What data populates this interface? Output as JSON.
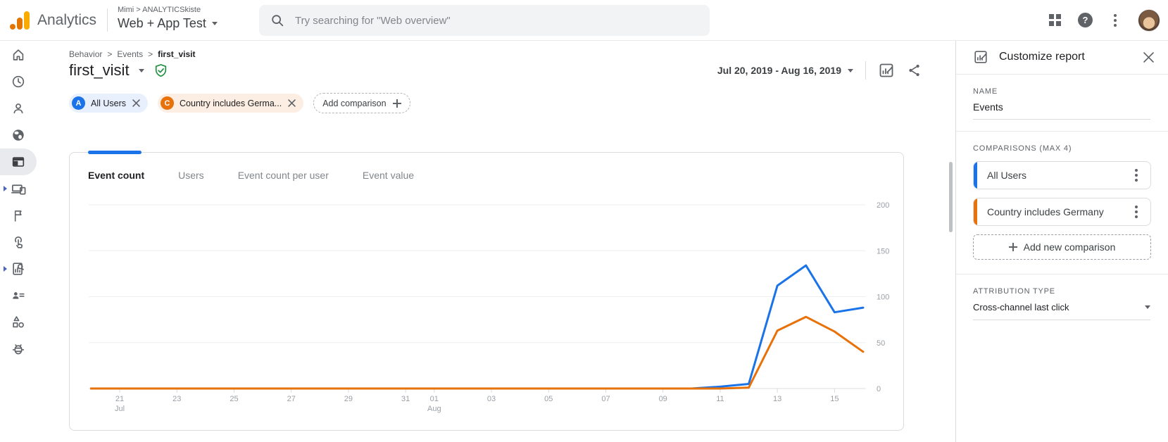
{
  "colors": {
    "accent_blue": "#1a73e8",
    "accent_orange": "#e8710a",
    "green_check": "#1e8e3e"
  },
  "icons": [
    "analytics-logo",
    "search-icon",
    "apps-grid-icon",
    "help-icon",
    "more-options-icon",
    "avatar",
    "home-icon",
    "clock-icon",
    "person-icon",
    "globe-icon",
    "reports-icon",
    "devices-icon",
    "flag-icon",
    "tap-icon",
    "analysis-icon",
    "audiences-icon",
    "shapes-icon",
    "bug-icon",
    "shield-check-icon",
    "customize-report-icon",
    "share-icon",
    "close-icon",
    "plus-icon",
    "kebab-icon"
  ],
  "topbar": {
    "brand": "Analytics",
    "account_path": "Mimi > ANALYTICSkiste",
    "property": "Web + App Test",
    "search_placeholder": "Try searching for \"Web overview\""
  },
  "breadcrumb": {
    "separator": ">",
    "items": [
      "Behavior",
      "Events",
      "first_visit"
    ]
  },
  "page": {
    "title": "first_visit"
  },
  "comparisons_bar": {
    "chips": [
      {
        "badge": "A",
        "label": "All Users"
      },
      {
        "badge": "C",
        "label": "Country includes Germa..."
      }
    ],
    "add_label": "Add comparison"
  },
  "toolbar": {
    "date_range": "Jul 20, 2019 - Aug 16, 2019"
  },
  "tabs": [
    {
      "label": "Event count",
      "selected": true
    },
    {
      "label": "Users"
    },
    {
      "label": "Event count per user"
    },
    {
      "label": "Event value"
    }
  ],
  "chart_data": {
    "type": "line",
    "x": [
      "Jul 20",
      "Jul 21",
      "Jul 22",
      "Jul 23",
      "Jul 24",
      "Jul 25",
      "Jul 26",
      "Jul 27",
      "Jul 28",
      "Jul 29",
      "Jul 30",
      "Jul 31",
      "Aug 1",
      "Aug 2",
      "Aug 3",
      "Aug 4",
      "Aug 5",
      "Aug 6",
      "Aug 7",
      "Aug 8",
      "Aug 9",
      "Aug 10",
      "Aug 11",
      "Aug 12",
      "Aug 13",
      "Aug 14",
      "Aug 15",
      "Aug 16"
    ],
    "series": [
      {
        "name": "All Users",
        "color": "#1a73e8",
        "values": [
          0,
          0,
          0,
          0,
          0,
          0,
          0,
          0,
          0,
          0,
          0,
          0,
          0,
          0,
          0,
          0,
          0,
          0,
          0,
          0,
          0,
          0,
          2,
          5,
          112,
          134,
          83,
          88
        ]
      },
      {
        "name": "Country includes Germany",
        "color": "#e8710a",
        "values": [
          0,
          0,
          0,
          0,
          0,
          0,
          0,
          0,
          0,
          0,
          0,
          0,
          0,
          0,
          0,
          0,
          0,
          0,
          0,
          0,
          0,
          0,
          0,
          1,
          63,
          78,
          62,
          40
        ]
      }
    ],
    "ylim": [
      0,
      200
    ],
    "yticks": [
      0,
      50,
      100,
      150,
      200
    ],
    "xticks": [
      {
        "i": 1,
        "label": "21",
        "sub": "Jul"
      },
      {
        "i": 3,
        "label": "23"
      },
      {
        "i": 5,
        "label": "25"
      },
      {
        "i": 7,
        "label": "27"
      },
      {
        "i": 9,
        "label": "29"
      },
      {
        "i": 11,
        "label": "31"
      },
      {
        "i": 12,
        "label": "01",
        "sub": "Aug"
      },
      {
        "i": 14,
        "label": "03"
      },
      {
        "i": 16,
        "label": "05"
      },
      {
        "i": 18,
        "label": "07"
      },
      {
        "i": 20,
        "label": "09"
      },
      {
        "i": 22,
        "label": "11"
      },
      {
        "i": 24,
        "label": "13"
      },
      {
        "i": 26,
        "label": "15"
      }
    ],
    "grid": "horizontal",
    "legend": "none",
    "title": ""
  },
  "panel": {
    "title": "Customize report",
    "name_label": "NAME",
    "name_value": "Events",
    "comparisons_label": "COMPARISONS (MAX 4)",
    "comparisons": [
      {
        "label": "All Users",
        "color": "#1a73e8"
      },
      {
        "label": "Country includes Germany",
        "color": "#e8710a"
      }
    ],
    "add_new_label": "Add new comparison",
    "attribution_label": "ATTRIBUTION TYPE",
    "attribution_value": "Cross-channel last click"
  }
}
